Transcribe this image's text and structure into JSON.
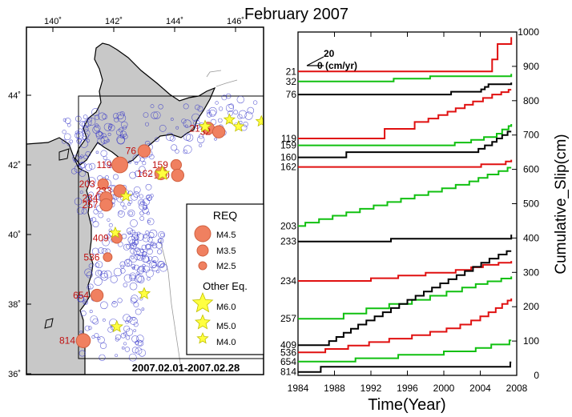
{
  "title": "February 2007",
  "map": {
    "lon_ticks": [
      "140˚",
      "142˚",
      "144˚",
      "146˚"
    ],
    "lat_ticks": [
      "44˚",
      "42˚",
      "40˚",
      "38˚",
      "36˚"
    ],
    "date_range": "2007.02.01-2007.02.28",
    "repeaters": [
      {
        "id": "21",
        "lon": 145.1,
        "lat": 43.05,
        "mag": 3.5
      },
      {
        "id": "32",
        "lon": 145.45,
        "lat": 42.95,
        "mag": 3.5
      },
      {
        "id": "76",
        "lon": 143.0,
        "lat": 42.4,
        "mag": 3.5
      },
      {
        "id": "119",
        "lon": 142.2,
        "lat": 42.0,
        "mag": 4.5
      },
      {
        "id": "159",
        "lon": 144.05,
        "lat": 42.0,
        "mag": 3.0
      },
      {
        "id": "160",
        "lon": 144.1,
        "lat": 41.7,
        "mag": 3.5
      },
      {
        "id": "162",
        "lon": 143.55,
        "lat": 41.75,
        "mag": 3.5
      },
      {
        "id": "203",
        "lon": 141.65,
        "lat": 41.45,
        "mag": 3.0
      },
      {
        "id": "233",
        "lon": 142.2,
        "lat": 41.25,
        "mag": 3.5
      },
      {
        "id": "234",
        "lon": 141.75,
        "lat": 41.05,
        "mag": 3.5
      },
      {
        "id": "257",
        "lon": 141.75,
        "lat": 40.85,
        "mag": 3.5
      },
      {
        "id": "409",
        "lon": 142.1,
        "lat": 39.9,
        "mag": 3.0
      },
      {
        "id": "536",
        "lon": 141.8,
        "lat": 39.35,
        "mag": 2.5
      },
      {
        "id": "654",
        "lon": 141.45,
        "lat": 38.25,
        "mag": 3.5
      },
      {
        "id": "814",
        "lon": 141.0,
        "lat": 36.95,
        "mag": 4.0
      }
    ],
    "other_eq": [
      {
        "lon": 145.0,
        "lat": 43.1,
        "mag": 5.0
      },
      {
        "lon": 145.8,
        "lat": 43.3,
        "mag": 4.5
      },
      {
        "lon": 146.1,
        "lat": 43.1,
        "mag": 4.5
      },
      {
        "lon": 146.85,
        "lat": 43.25,
        "mag": 4.5
      },
      {
        "lon": 143.6,
        "lat": 41.75,
        "mag": 5.8
      },
      {
        "lon": 142.4,
        "lat": 41.1,
        "mag": 4.5
      },
      {
        "lon": 142.05,
        "lat": 40.05,
        "mag": 4.5
      },
      {
        "lon": 143.0,
        "lat": 38.3,
        "mag": 4.8
      },
      {
        "lon": 142.1,
        "lat": 37.35,
        "mag": 4.8
      }
    ],
    "legend": {
      "title": "REQ",
      "items": [
        "M4.5",
        "M3.5",
        "M2.5"
      ],
      "other_title": "Other Eq.",
      "other_items": [
        "M6.0",
        "M5.0",
        "M4.0"
      ]
    },
    "colors": {
      "land": "#c8c8c8",
      "req": "#f08060",
      "req_edge": "#d06040",
      "star": "#ffff40",
      "star_edge": "#c0c000",
      "circle": "#3030c8",
      "label": "#c01010"
    }
  },
  "chart_data": {
    "type": "line",
    "xlabel": "Time(Year)",
    "ylabel": "Cumulative_Slip(cm)",
    "xlim": [
      1984,
      2008
    ],
    "ylim": [
      0,
      1000
    ],
    "x_ticks": [
      "1984",
      "1988",
      "1992",
      "1996",
      "2000",
      "2004",
      "2008"
    ],
    "y_ticks": [
      "0",
      "100",
      "200",
      "300",
      "400",
      "500",
      "600",
      "700",
      "800",
      "900",
      "1000"
    ],
    "scale_note": {
      "top": "20",
      "bottom": "0 (cm/yr)"
    },
    "series": [
      {
        "name": "21",
        "color": "#e01010",
        "steps": [
          [
            1984,
            885
          ],
          [
            2005.3,
            920
          ],
          [
            2005.9,
            965
          ],
          [
            2007.4,
            985
          ]
        ]
      },
      {
        "name": "32",
        "color": "#10c010",
        "steps": [
          [
            1984,
            856
          ],
          [
            1994.5,
            864
          ],
          [
            1998.5,
            871
          ],
          [
            2007.4,
            878
          ]
        ]
      },
      {
        "name": "76",
        "color": "#000000",
        "steps": [
          [
            1984,
            818
          ],
          [
            2000.8,
            826
          ],
          [
            2004.1,
            833
          ],
          [
            2004.5,
            840
          ],
          [
            2004.9,
            848
          ],
          [
            2007.4,
            853
          ]
        ]
      },
      {
        "name": "119",
        "color": "#e01010",
        "steps": [
          [
            1984,
            690
          ],
          [
            1993.5,
            718
          ],
          [
            1996.8,
            738
          ],
          [
            1998.3,
            748
          ],
          [
            1999.4,
            758
          ],
          [
            2000.4,
            768
          ],
          [
            2001.3,
            778
          ],
          [
            2002.3,
            788
          ],
          [
            2003.2,
            798
          ],
          [
            2004.3,
            808
          ],
          [
            2005.3,
            818
          ],
          [
            2006.3,
            825
          ],
          [
            2007.1,
            832
          ]
        ]
      },
      {
        "name": "159",
        "color": "#10c010",
        "steps": [
          [
            1984,
            670
          ],
          [
            2001.2,
            678
          ],
          [
            2003.0,
            686
          ],
          [
            2004.4,
            694
          ],
          [
            2005.8,
            704
          ],
          [
            2006.4,
            716
          ],
          [
            2007.1,
            726
          ],
          [
            2007.4,
            732
          ]
        ]
      },
      {
        "name": "160",
        "color": "#000000",
        "steps": [
          [
            1984,
            635
          ],
          [
            1989.3,
            650
          ],
          [
            2003.8,
            660
          ],
          [
            2004.5,
            670
          ],
          [
            2005.3,
            680
          ],
          [
            2005.8,
            690
          ],
          [
            2006.4,
            700
          ],
          [
            2007.0,
            710
          ]
        ]
      },
      {
        "name": "162",
        "color": "#e01010",
        "steps": [
          [
            1984,
            607
          ],
          [
            2004.1,
            615
          ],
          [
            2006.8,
            623
          ],
          [
            2007.4,
            628
          ]
        ]
      },
      {
        "name": "203",
        "color": "#10c010",
        "steps": [
          [
            1984,
            435
          ],
          [
            1984.8,
            445
          ],
          [
            1986.3,
            455
          ],
          [
            1987.8,
            465
          ],
          [
            1989.3,
            475
          ],
          [
            1990.8,
            485
          ],
          [
            1992.3,
            495
          ],
          [
            1993.8,
            505
          ],
          [
            1995.3,
            515
          ],
          [
            1996.8,
            525
          ],
          [
            1998.3,
            535
          ],
          [
            1999.8,
            545
          ],
          [
            2001.3,
            555
          ],
          [
            2002.8,
            565
          ],
          [
            2003.8,
            575
          ],
          [
            2004.8,
            585
          ],
          [
            2006.0,
            595
          ],
          [
            2007.0,
            605
          ]
        ]
      },
      {
        "name": "233",
        "color": "#000000",
        "steps": [
          [
            1984,
            390
          ],
          [
            1994.2,
            398
          ],
          [
            2007.4,
            410
          ]
        ]
      },
      {
        "name": "234",
        "color": "#e01010",
        "steps": [
          [
            1984,
            275
          ],
          [
            1992.0,
            283
          ],
          [
            1995.0,
            291
          ],
          [
            1998.0,
            299
          ],
          [
            2001.3,
            307
          ],
          [
            2003.0,
            315
          ],
          [
            2004.3,
            322
          ],
          [
            2006.0,
            328
          ],
          [
            2007.4,
            333
          ]
        ]
      },
      {
        "name": "257",
        "color": "#10c010",
        "steps": [
          [
            1984,
            165
          ],
          [
            1989.0,
            180
          ],
          [
            1991.5,
            195
          ],
          [
            1994.0,
            208
          ],
          [
            1996.5,
            220
          ],
          [
            1998.5,
            232
          ],
          [
            2000.3,
            244
          ],
          [
            2002.0,
            256
          ],
          [
            2003.5,
            266
          ],
          [
            2004.8,
            274
          ],
          [
            2006.3,
            282
          ],
          [
            2007.4,
            288
          ]
        ]
      },
      {
        "name": "409",
        "color": "#000000",
        "steps": [
          [
            1984,
            88
          ],
          [
            1987.4,
            100
          ],
          [
            1988.2,
            112
          ],
          [
            1989.0,
            124
          ],
          [
            1989.8,
            136
          ],
          [
            1990.6,
            148
          ],
          [
            1991.5,
            160
          ],
          [
            1992.4,
            172
          ],
          [
            1993.3,
            184
          ],
          [
            1994.2,
            196
          ],
          [
            1995.1,
            208
          ],
          [
            1996.0,
            220
          ],
          [
            1996.9,
            232
          ],
          [
            1997.8,
            244
          ],
          [
            1998.7,
            256
          ],
          [
            1999.6,
            268
          ],
          [
            2000.5,
            280
          ],
          [
            2001.4,
            292
          ],
          [
            2002.3,
            304
          ],
          [
            2003.2,
            316
          ],
          [
            2004.1,
            328
          ],
          [
            2005.0,
            340
          ],
          [
            2006.0,
            352
          ],
          [
            2006.9,
            362
          ]
        ]
      },
      {
        "name": "536",
        "color": "#e01010",
        "steps": [
          [
            1984,
            67
          ],
          [
            1987.0,
            77
          ],
          [
            1989.5,
            87
          ],
          [
            1991.8,
            97
          ],
          [
            1994.0,
            107
          ],
          [
            1996.5,
            117
          ],
          [
            1998.5,
            127
          ],
          [
            2000.3,
            137
          ],
          [
            2001.8,
            148
          ],
          [
            2003.0,
            160
          ],
          [
            2004.0,
            172
          ],
          [
            2004.9,
            184
          ],
          [
            2005.7,
            196
          ],
          [
            2006.4,
            208
          ],
          [
            2007.0,
            218
          ],
          [
            2007.4,
            224
          ]
        ]
      },
      {
        "name": "654",
        "color": "#10c010",
        "steps": [
          [
            1984,
            40
          ],
          [
            1990.3,
            50
          ],
          [
            1995.0,
            60
          ],
          [
            2000.0,
            70
          ],
          [
            2003.5,
            80
          ],
          [
            2005.2,
            90
          ],
          [
            2007.2,
            102
          ]
        ]
      },
      {
        "name": "814",
        "color": "#000000",
        "steps": [
          [
            1984,
            10
          ],
          [
            1986.5,
            25
          ],
          [
            2007.3,
            38
          ]
        ]
      }
    ]
  }
}
